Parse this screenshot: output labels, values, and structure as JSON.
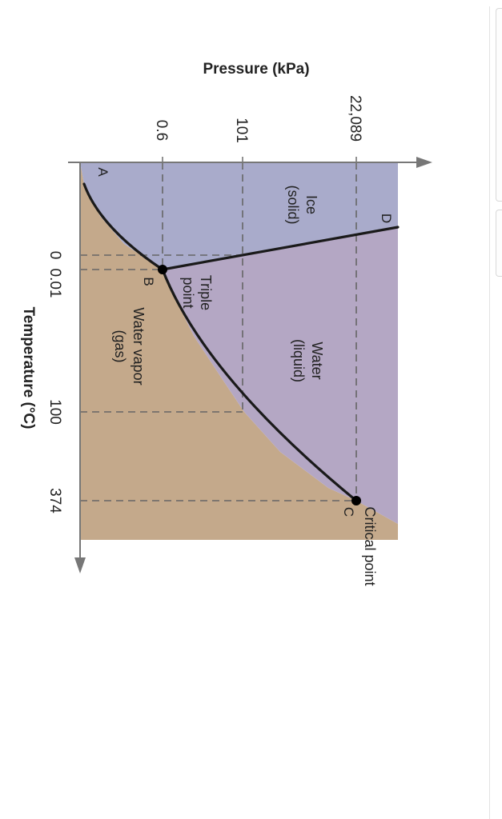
{
  "diagram": {
    "pressure_axis_title": "Pressure (kPa)",
    "temperature_axis_title": "Temperature (°C)",
    "pressure_ticks": [
      "0.6",
      "101",
      "22,089"
    ],
    "temperature_ticks": [
      "0",
      "0.01",
      "100",
      "374"
    ],
    "regions": {
      "solid_line1": "Ice",
      "solid_line2": "(solid)",
      "liquid_line1": "Water",
      "liquid_line2": "(liquid)",
      "gas_line1": "Water vapor",
      "gas_line2": "(gas)"
    },
    "point_labels": {
      "a": "A",
      "b": "B",
      "c": "C",
      "d": "D"
    },
    "triple_point_line1": "Triple",
    "triple_point_line2": "point",
    "critical_point": "Critical point",
    "colors": {
      "solid": "#a9abcb",
      "liquid": "#b4a7c4",
      "gas": "#c4a98b",
      "curve": "#1a1a1a",
      "dashed": "#666666",
      "axis": "#777777"
    }
  }
}
